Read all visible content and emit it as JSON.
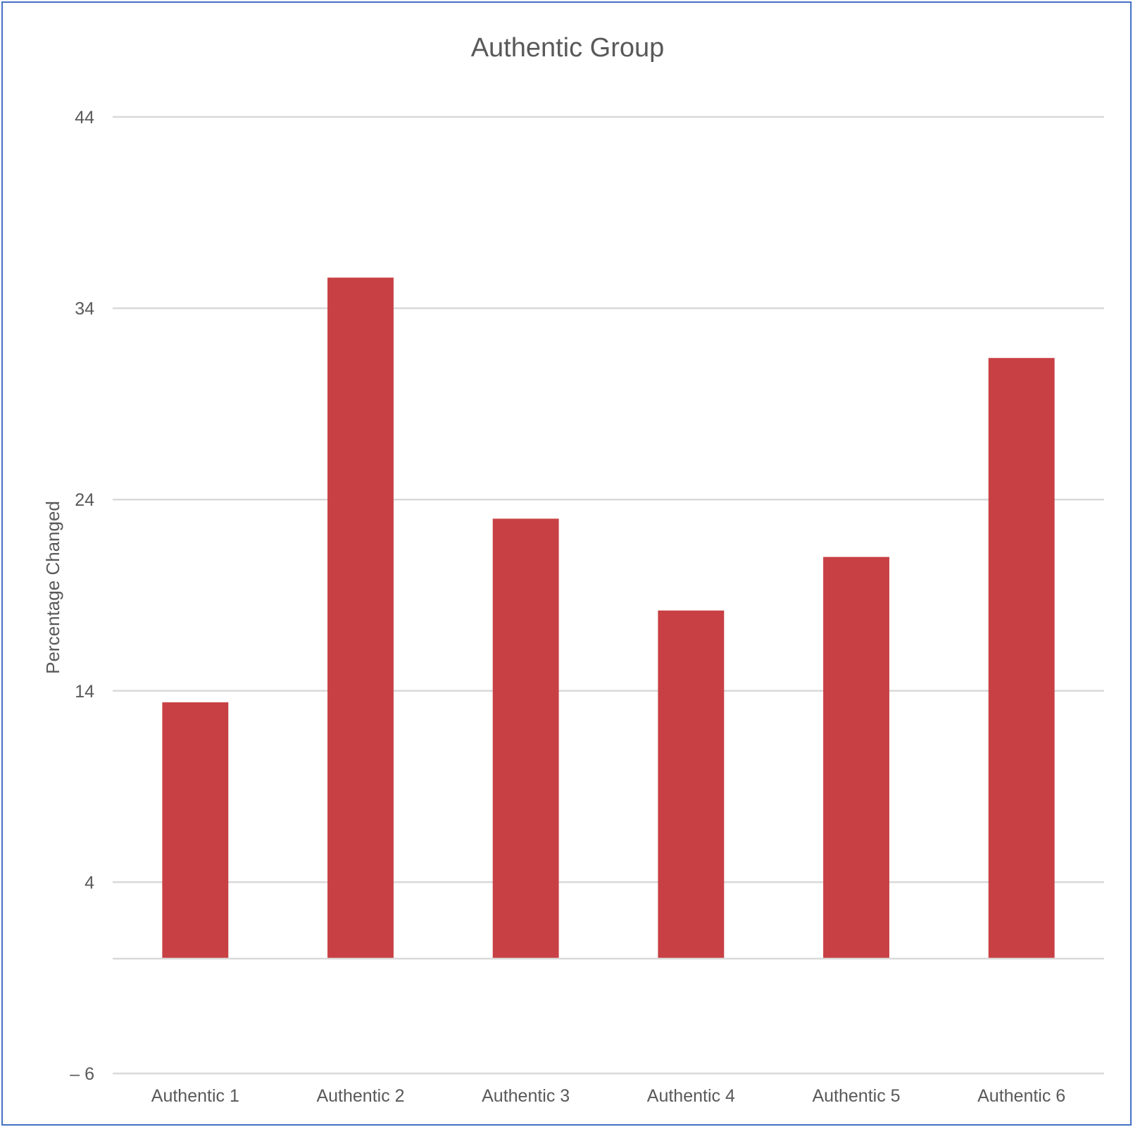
{
  "chart_data": {
    "type": "bar",
    "title": "Authentic Group",
    "xlabel": "",
    "ylabel": "Percentage Changed",
    "categories": [
      "Authentic 1",
      "Authentic 2",
      "Authentic 3",
      "Authentic 4",
      "Authentic 5",
      "Authentic 6"
    ],
    "values": [
      13.4,
      35.6,
      23.0,
      18.2,
      21.0,
      31.4
    ],
    "baseline": 0,
    "ylim": [
      -6,
      44
    ],
    "yticks": [
      44,
      34,
      24,
      14,
      4,
      -6
    ],
    "ytick_labels": [
      "44",
      "34",
      "24",
      "14",
      "4",
      "– 6"
    ],
    "grid": true,
    "legend": "none",
    "bar_color": "#c84044"
  }
}
